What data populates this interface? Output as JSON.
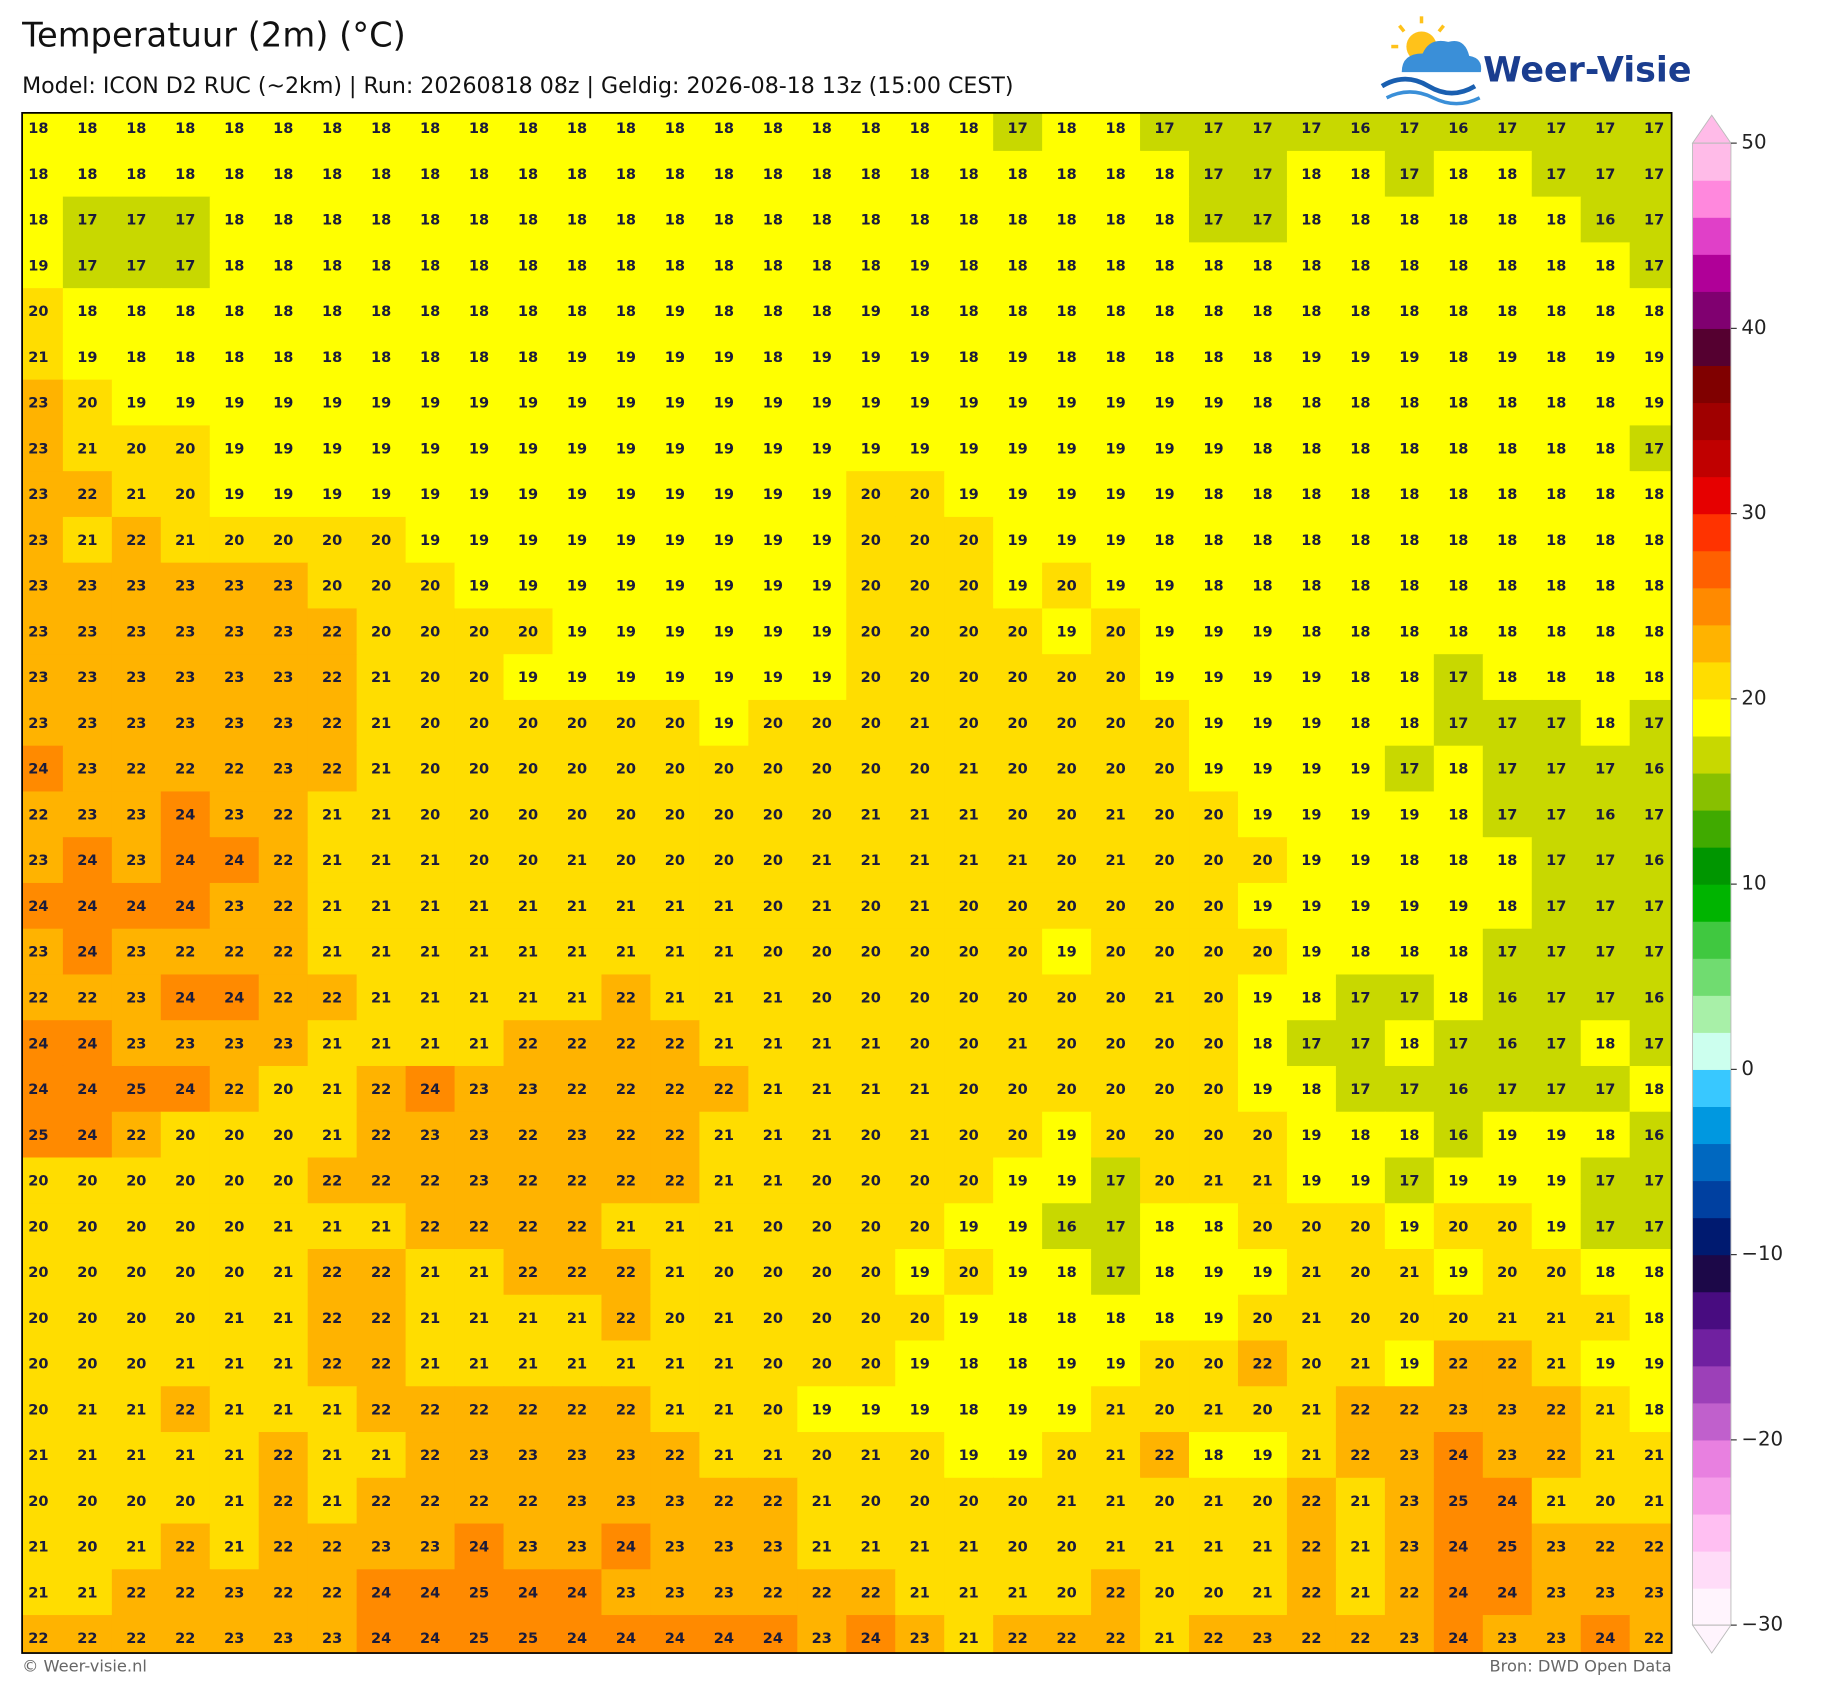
{
  "header": {
    "title": "Temperatuur (2m) (°C)",
    "subtitle": "Model: ICON D2 RUC (~2km)  |  Run: 20260818 08z  |  Geldig: 2026-08-18 13z (15:00 CEST)"
  },
  "logo": {
    "text": "Weer-Visie"
  },
  "map": {
    "rows": [
      [
        18,
        18,
        18,
        18,
        18,
        18,
        18,
        18,
        18,
        18,
        18,
        18,
        18,
        18,
        18,
        18,
        18,
        18,
        18,
        18,
        17,
        18,
        18,
        17,
        17,
        17,
        17,
        16,
        17,
        16,
        17,
        17,
        17,
        17
      ],
      [
        18,
        18,
        18,
        18,
        18,
        18,
        18,
        18,
        18,
        18,
        18,
        18,
        18,
        18,
        18,
        18,
        18,
        18,
        18,
        18,
        18,
        18,
        18,
        18,
        17,
        17,
        18,
        18,
        17,
        18,
        18,
        17,
        17,
        17
      ],
      [
        18,
        17,
        17,
        17,
        18,
        18,
        18,
        18,
        18,
        18,
        18,
        18,
        18,
        18,
        18,
        18,
        18,
        18,
        18,
        18,
        18,
        18,
        18,
        18,
        17,
        17,
        18,
        18,
        18,
        18,
        18,
        18,
        16,
        17
      ],
      [
        19,
        17,
        17,
        17,
        18,
        18,
        18,
        18,
        18,
        18,
        18,
        18,
        18,
        18,
        18,
        18,
        18,
        18,
        19,
        18,
        18,
        18,
        18,
        18,
        18,
        18,
        18,
        18,
        18,
        18,
        18,
        18,
        18,
        17
      ],
      [
        20,
        18,
        18,
        18,
        18,
        18,
        18,
        18,
        18,
        18,
        18,
        18,
        18,
        19,
        18,
        18,
        18,
        19,
        18,
        18,
        18,
        18,
        18,
        18,
        18,
        18,
        18,
        18,
        18,
        18,
        18,
        18,
        18,
        18
      ],
      [
        21,
        19,
        18,
        18,
        18,
        18,
        18,
        18,
        18,
        18,
        18,
        19,
        19,
        19,
        19,
        18,
        19,
        19,
        19,
        18,
        19,
        18,
        18,
        18,
        18,
        18,
        19,
        19,
        19,
        18,
        19,
        18,
        19,
        19
      ],
      [
        23,
        20,
        19,
        19,
        19,
        19,
        19,
        19,
        19,
        19,
        19,
        19,
        19,
        19,
        19,
        19,
        19,
        19,
        19,
        19,
        19,
        19,
        19,
        19,
        19,
        18,
        18,
        18,
        18,
        18,
        18,
        18,
        18,
        19
      ],
      [
        23,
        21,
        20,
        20,
        19,
        19,
        19,
        19,
        19,
        19,
        19,
        19,
        19,
        19,
        19,
        19,
        19,
        19,
        19,
        19,
        19,
        19,
        19,
        19,
        19,
        18,
        18,
        18,
        18,
        18,
        18,
        18,
        18,
        17
      ],
      [
        23,
        22,
        21,
        20,
        19,
        19,
        19,
        19,
        19,
        19,
        19,
        19,
        19,
        19,
        19,
        19,
        19,
        20,
        20,
        19,
        19,
        19,
        19,
        19,
        18,
        18,
        18,
        18,
        18,
        18,
        18,
        18,
        18,
        18
      ],
      [
        23,
        21,
        22,
        21,
        20,
        20,
        20,
        20,
        19,
        19,
        19,
        19,
        19,
        19,
        19,
        19,
        19,
        20,
        20,
        20,
        19,
        19,
        19,
        18,
        18,
        18,
        18,
        18,
        18,
        18,
        18,
        18,
        18,
        18
      ],
      [
        23,
        23,
        23,
        23,
        23,
        23,
        20,
        20,
        20,
        19,
        19,
        19,
        19,
        19,
        19,
        19,
        19,
        20,
        20,
        20,
        19,
        20,
        19,
        19,
        18,
        18,
        18,
        18,
        18,
        18,
        18,
        18,
        18,
        18
      ],
      [
        23,
        23,
        23,
        23,
        23,
        23,
        22,
        20,
        20,
        20,
        20,
        19,
        19,
        19,
        19,
        19,
        19,
        20,
        20,
        20,
        20,
        19,
        20,
        19,
        19,
        19,
        18,
        18,
        18,
        18,
        18,
        18,
        18,
        18
      ],
      [
        23,
        23,
        23,
        23,
        23,
        23,
        22,
        21,
        20,
        20,
        19,
        19,
        19,
        19,
        19,
        19,
        19,
        20,
        20,
        20,
        20,
        20,
        20,
        19,
        19,
        19,
        19,
        18,
        18,
        17,
        18,
        18,
        18,
        18
      ],
      [
        23,
        23,
        23,
        23,
        23,
        23,
        22,
        21,
        20,
        20,
        20,
        20,
        20,
        20,
        19,
        20,
        20,
        20,
        21,
        20,
        20,
        20,
        20,
        20,
        19,
        19,
        19,
        18,
        18,
        17,
        17,
        17,
        18,
        17
      ],
      [
        24,
        23,
        22,
        22,
        22,
        23,
        22,
        21,
        20,
        20,
        20,
        20,
        20,
        20,
        20,
        20,
        20,
        20,
        20,
        21,
        20,
        20,
        20,
        20,
        19,
        19,
        19,
        19,
        17,
        18,
        17,
        17,
        17,
        16
      ],
      [
        22,
        23,
        23,
        24,
        23,
        22,
        21,
        21,
        20,
        20,
        20,
        20,
        20,
        20,
        20,
        20,
        20,
        21,
        21,
        21,
        20,
        20,
        21,
        20,
        20,
        19,
        19,
        19,
        19,
        18,
        17,
        17,
        16,
        17
      ],
      [
        23,
        24,
        23,
        24,
        24,
        22,
        21,
        21,
        21,
        20,
        20,
        21,
        20,
        20,
        20,
        20,
        21,
        21,
        21,
        21,
        21,
        20,
        21,
        20,
        20,
        20,
        19,
        19,
        18,
        18,
        18,
        17,
        17,
        16
      ],
      [
        24,
        24,
        24,
        24,
        23,
        22,
        21,
        21,
        21,
        21,
        21,
        21,
        21,
        21,
        21,
        20,
        21,
        20,
        21,
        20,
        20,
        20,
        20,
        20,
        20,
        19,
        19,
        19,
        19,
        19,
        18,
        17,
        17,
        17
      ],
      [
        23,
        24,
        23,
        22,
        22,
        22,
        21,
        21,
        21,
        21,
        21,
        21,
        21,
        21,
        21,
        20,
        20,
        20,
        20,
        20,
        20,
        19,
        20,
        20,
        20,
        20,
        19,
        18,
        18,
        18,
        17,
        17,
        17,
        17
      ],
      [
        22,
        22,
        23,
        24,
        24,
        22,
        22,
        21,
        21,
        21,
        21,
        21,
        22,
        21,
        21,
        21,
        20,
        20,
        20,
        20,
        20,
        20,
        20,
        21,
        20,
        19,
        18,
        17,
        17,
        18,
        16,
        17,
        17,
        16
      ],
      [
        24,
        24,
        23,
        23,
        23,
        23,
        21,
        21,
        21,
        21,
        22,
        22,
        22,
        22,
        21,
        21,
        21,
        21,
        20,
        20,
        21,
        20,
        20,
        20,
        20,
        18,
        17,
        17,
        18,
        17,
        16,
        17,
        18,
        17
      ],
      [
        24,
        24,
        25,
        24,
        22,
        20,
        21,
        22,
        24,
        23,
        23,
        22,
        22,
        22,
        22,
        21,
        21,
        21,
        21,
        20,
        20,
        20,
        20,
        20,
        20,
        19,
        18,
        17,
        17,
        16,
        17,
        17,
        17,
        18
      ],
      [
        25,
        24,
        22,
        20,
        20,
        20,
        21,
        22,
        23,
        23,
        22,
        23,
        22,
        22,
        21,
        21,
        21,
        20,
        21,
        20,
        20,
        19,
        20,
        20,
        20,
        20,
        19,
        18,
        18,
        16,
        19,
        19,
        18,
        16
      ],
      [
        20,
        20,
        20,
        20,
        20,
        20,
        22,
        22,
        22,
        23,
        22,
        22,
        22,
        22,
        21,
        21,
        20,
        20,
        20,
        20,
        19,
        19,
        17,
        20,
        21,
        21,
        19,
        19,
        17,
        19,
        19,
        19,
        17,
        17
      ],
      [
        20,
        20,
        20,
        20,
        20,
        21,
        21,
        21,
        22,
        22,
        22,
        22,
        21,
        21,
        21,
        20,
        20,
        20,
        20,
        19,
        19,
        16,
        17,
        18,
        18,
        20,
        20,
        20,
        19,
        20,
        20,
        19,
        17,
        17
      ],
      [
        20,
        20,
        20,
        20,
        20,
        21,
        22,
        22,
        21,
        21,
        22,
        22,
        22,
        21,
        20,
        20,
        20,
        20,
        19,
        20,
        19,
        18,
        17,
        18,
        19,
        19,
        21,
        20,
        21,
        19,
        20,
        20,
        18,
        18
      ],
      [
        20,
        20,
        20,
        20,
        21,
        21,
        22,
        22,
        21,
        21,
        21,
        21,
        22,
        20,
        21,
        20,
        20,
        20,
        20,
        19,
        18,
        18,
        18,
        18,
        19,
        20,
        21,
        20,
        20,
        20,
        21,
        21,
        21,
        18
      ],
      [
        20,
        20,
        20,
        21,
        21,
        21,
        22,
        22,
        21,
        21,
        21,
        21,
        21,
        21,
        21,
        20,
        20,
        20,
        19,
        18,
        18,
        19,
        19,
        20,
        20,
        22,
        20,
        21,
        19,
        22,
        22,
        21,
        19,
        19
      ],
      [
        20,
        21,
        21,
        22,
        21,
        21,
        21,
        22,
        22,
        22,
        22,
        22,
        22,
        21,
        21,
        20,
        19,
        19,
        19,
        18,
        19,
        19,
        21,
        20,
        21,
        20,
        21,
        22,
        22,
        23,
        23,
        22,
        21,
        18
      ],
      [
        21,
        21,
        21,
        21,
        21,
        22,
        21,
        21,
        22,
        23,
        23,
        23,
        23,
        22,
        21,
        21,
        20,
        21,
        20,
        19,
        19,
        20,
        21,
        22,
        18,
        19,
        21,
        22,
        23,
        24,
        23,
        22,
        21,
        21
      ],
      [
        20,
        20,
        20,
        20,
        21,
        22,
        21,
        22,
        22,
        22,
        22,
        23,
        23,
        23,
        22,
        22,
        21,
        20,
        20,
        20,
        20,
        21,
        21,
        20,
        21,
        20,
        22,
        21,
        23,
        25,
        24,
        21,
        20,
        21
      ],
      [
        21,
        20,
        21,
        22,
        21,
        22,
        22,
        23,
        23,
        24,
        23,
        23,
        24,
        23,
        23,
        23,
        21,
        21,
        21,
        21,
        20,
        20,
        21,
        21,
        21,
        21,
        22,
        21,
        23,
        24,
        25,
        23,
        22,
        22
      ],
      [
        21,
        21,
        22,
        22,
        23,
        22,
        22,
        24,
        24,
        25,
        24,
        24,
        23,
        23,
        23,
        22,
        22,
        22,
        21,
        21,
        21,
        20,
        22,
        20,
        20,
        21,
        22,
        21,
        22,
        24,
        24,
        23,
        23,
        23
      ],
      [
        22,
        22,
        22,
        22,
        23,
        23,
        23,
        24,
        24,
        25,
        25,
        24,
        24,
        24,
        24,
        24,
        23,
        24,
        23,
        21,
        22,
        22,
        22,
        21,
        22,
        23,
        22,
        22,
        23,
        24,
        23,
        23,
        24,
        22
      ]
    ],
    "colorbar": {
      "lim": [
        -30,
        50
      ],
      "ticks": [
        {
          "value": -30,
          "label": "−30"
        },
        {
          "value": -20,
          "label": "−20"
        },
        {
          "value": -10,
          "label": "−10"
        },
        0,
        10,
        20,
        30,
        40,
        50
      ],
      "colors": [
        "#fff4fd",
        "#ffdcf8",
        "#ffbff2",
        "#f59de9",
        "#e880e0",
        "#c060cc",
        "#9c40b8",
        "#7020a0",
        "#480c80",
        "#1c0848",
        "#001a70",
        "#0040a0",
        "#0068c0",
        "#0098e0",
        "#38c8ff",
        "#ccffee",
        "#a8f0a8",
        "#70dc70",
        "#40c840",
        "#00b400",
        "#009600",
        "#40aa00",
        "#88c000",
        "#c8d800",
        "#ffff00",
        "#ffdd00",
        "#ffb300",
        "#ff8a00",
        "#ff6000",
        "#ff3300",
        "#e60000",
        "#c00000",
        "#a00000",
        "#800000",
        "#550030",
        "#800070",
        "#b00098",
        "#e040c8",
        "#ff88dd",
        "#ffbbe8"
      ]
    }
  },
  "footer": {
    "left": "© Weer-visie.nl",
    "right": "Bron: DWD Open Data"
  }
}
